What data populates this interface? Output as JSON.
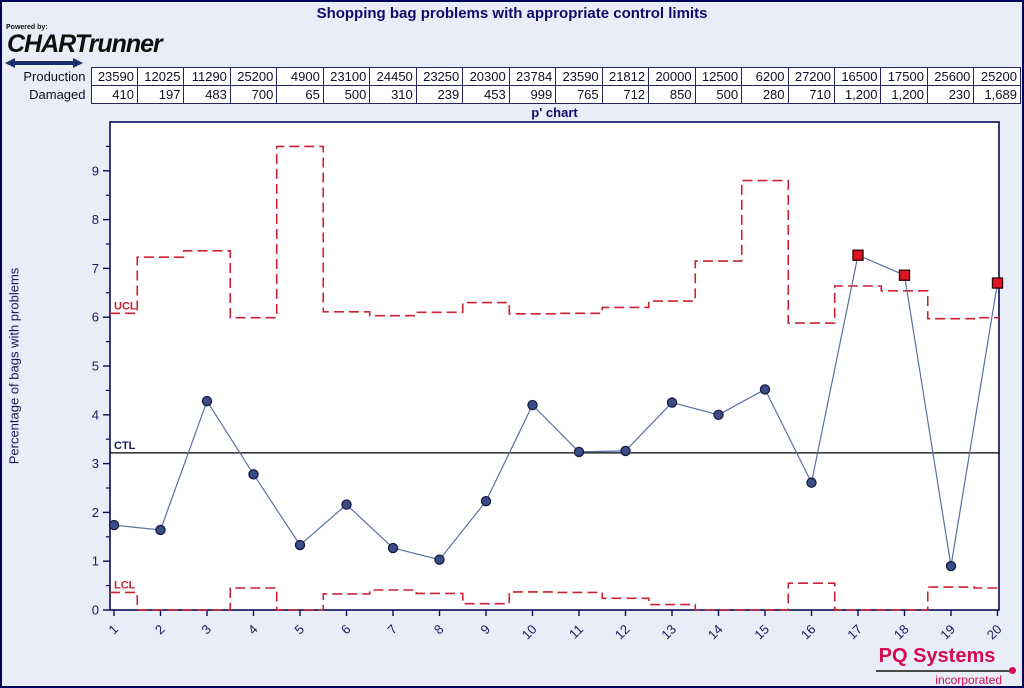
{
  "header": {
    "title": "Shopping bag problems with appropriate control limits",
    "powered_by": "Powered by:",
    "brand": "CHARTrunner"
  },
  "table": {
    "rows": [
      {
        "label": "Production",
        "values": [
          "23590",
          "12025",
          "11290",
          "25200",
          "4900",
          "23100",
          "24450",
          "23250",
          "20300",
          "23784",
          "23590",
          "21812",
          "20000",
          "12500",
          "6200",
          "27200",
          "16500",
          "17500",
          "25600",
          "25200"
        ]
      },
      {
        "label": "Damaged",
        "values": [
          "410",
          "197",
          "483",
          "700",
          "65",
          "500",
          "310",
          "239",
          "453",
          "999",
          "765",
          "712",
          "850",
          "500",
          "280",
          "710",
          "1,200",
          "1,200",
          "230",
          "1,689"
        ]
      }
    ]
  },
  "chart_data": {
    "type": "line",
    "title": "p' chart",
    "ylabel": "Percentage of bags with problems",
    "x": [
      1,
      2,
      3,
      4,
      5,
      6,
      7,
      8,
      9,
      10,
      11,
      12,
      13,
      14,
      15,
      16,
      17,
      18,
      19,
      20
    ],
    "values": [
      1.74,
      1.64,
      4.28,
      2.78,
      1.33,
      2.16,
      1.27,
      1.03,
      2.23,
      4.2,
      3.24,
      3.26,
      4.25,
      4.0,
      4.52,
      2.61,
      7.27,
      6.86,
      0.9,
      6.7
    ],
    "ucl": [
      6.08,
      7.23,
      7.36,
      5.99,
      9.5,
      6.11,
      6.03,
      6.1,
      6.3,
      6.07,
      6.08,
      6.2,
      6.33,
      7.15,
      8.8,
      5.88,
      6.64,
      6.54,
      5.97,
      5.99
    ],
    "lcl": [
      0.36,
      0,
      0,
      0.45,
      0,
      0.33,
      0.41,
      0.34,
      0.13,
      0.37,
      0.36,
      0.24,
      0.11,
      0,
      0,
      0.55,
      0,
      0,
      0.47,
      0.45
    ],
    "ctl": 3.22,
    "out_of_control_points": [
      17,
      18,
      20
    ],
    "control_limit_labels": {
      "ucl": "UCL",
      "ctl": "CTL",
      "lcl": "LCL"
    },
    "ylim": [
      0,
      10
    ],
    "yticks_major": [
      0,
      1,
      2,
      3,
      4,
      5,
      6,
      7,
      8,
      9
    ],
    "ytick_minor_step": 0.5,
    "grid": false,
    "legend": "none"
  },
  "footer": {
    "brand": "PQ Systems",
    "sub": "incorporated"
  },
  "colors": {
    "background": "#e9edf8",
    "plot_background": "#ffffff",
    "navy": "#0a0a57",
    "axis_text": "#19195a",
    "limit_red": "#cc2233",
    "ctl_black": "#000000",
    "series_line": "#5a70a3",
    "marker_fill": "#3c4c85",
    "marker_stroke": "#10173d",
    "ooc_fill": "#e01522",
    "ooc_stroke": "#3a0a0a",
    "brand_crimson": "#d30b4e"
  }
}
